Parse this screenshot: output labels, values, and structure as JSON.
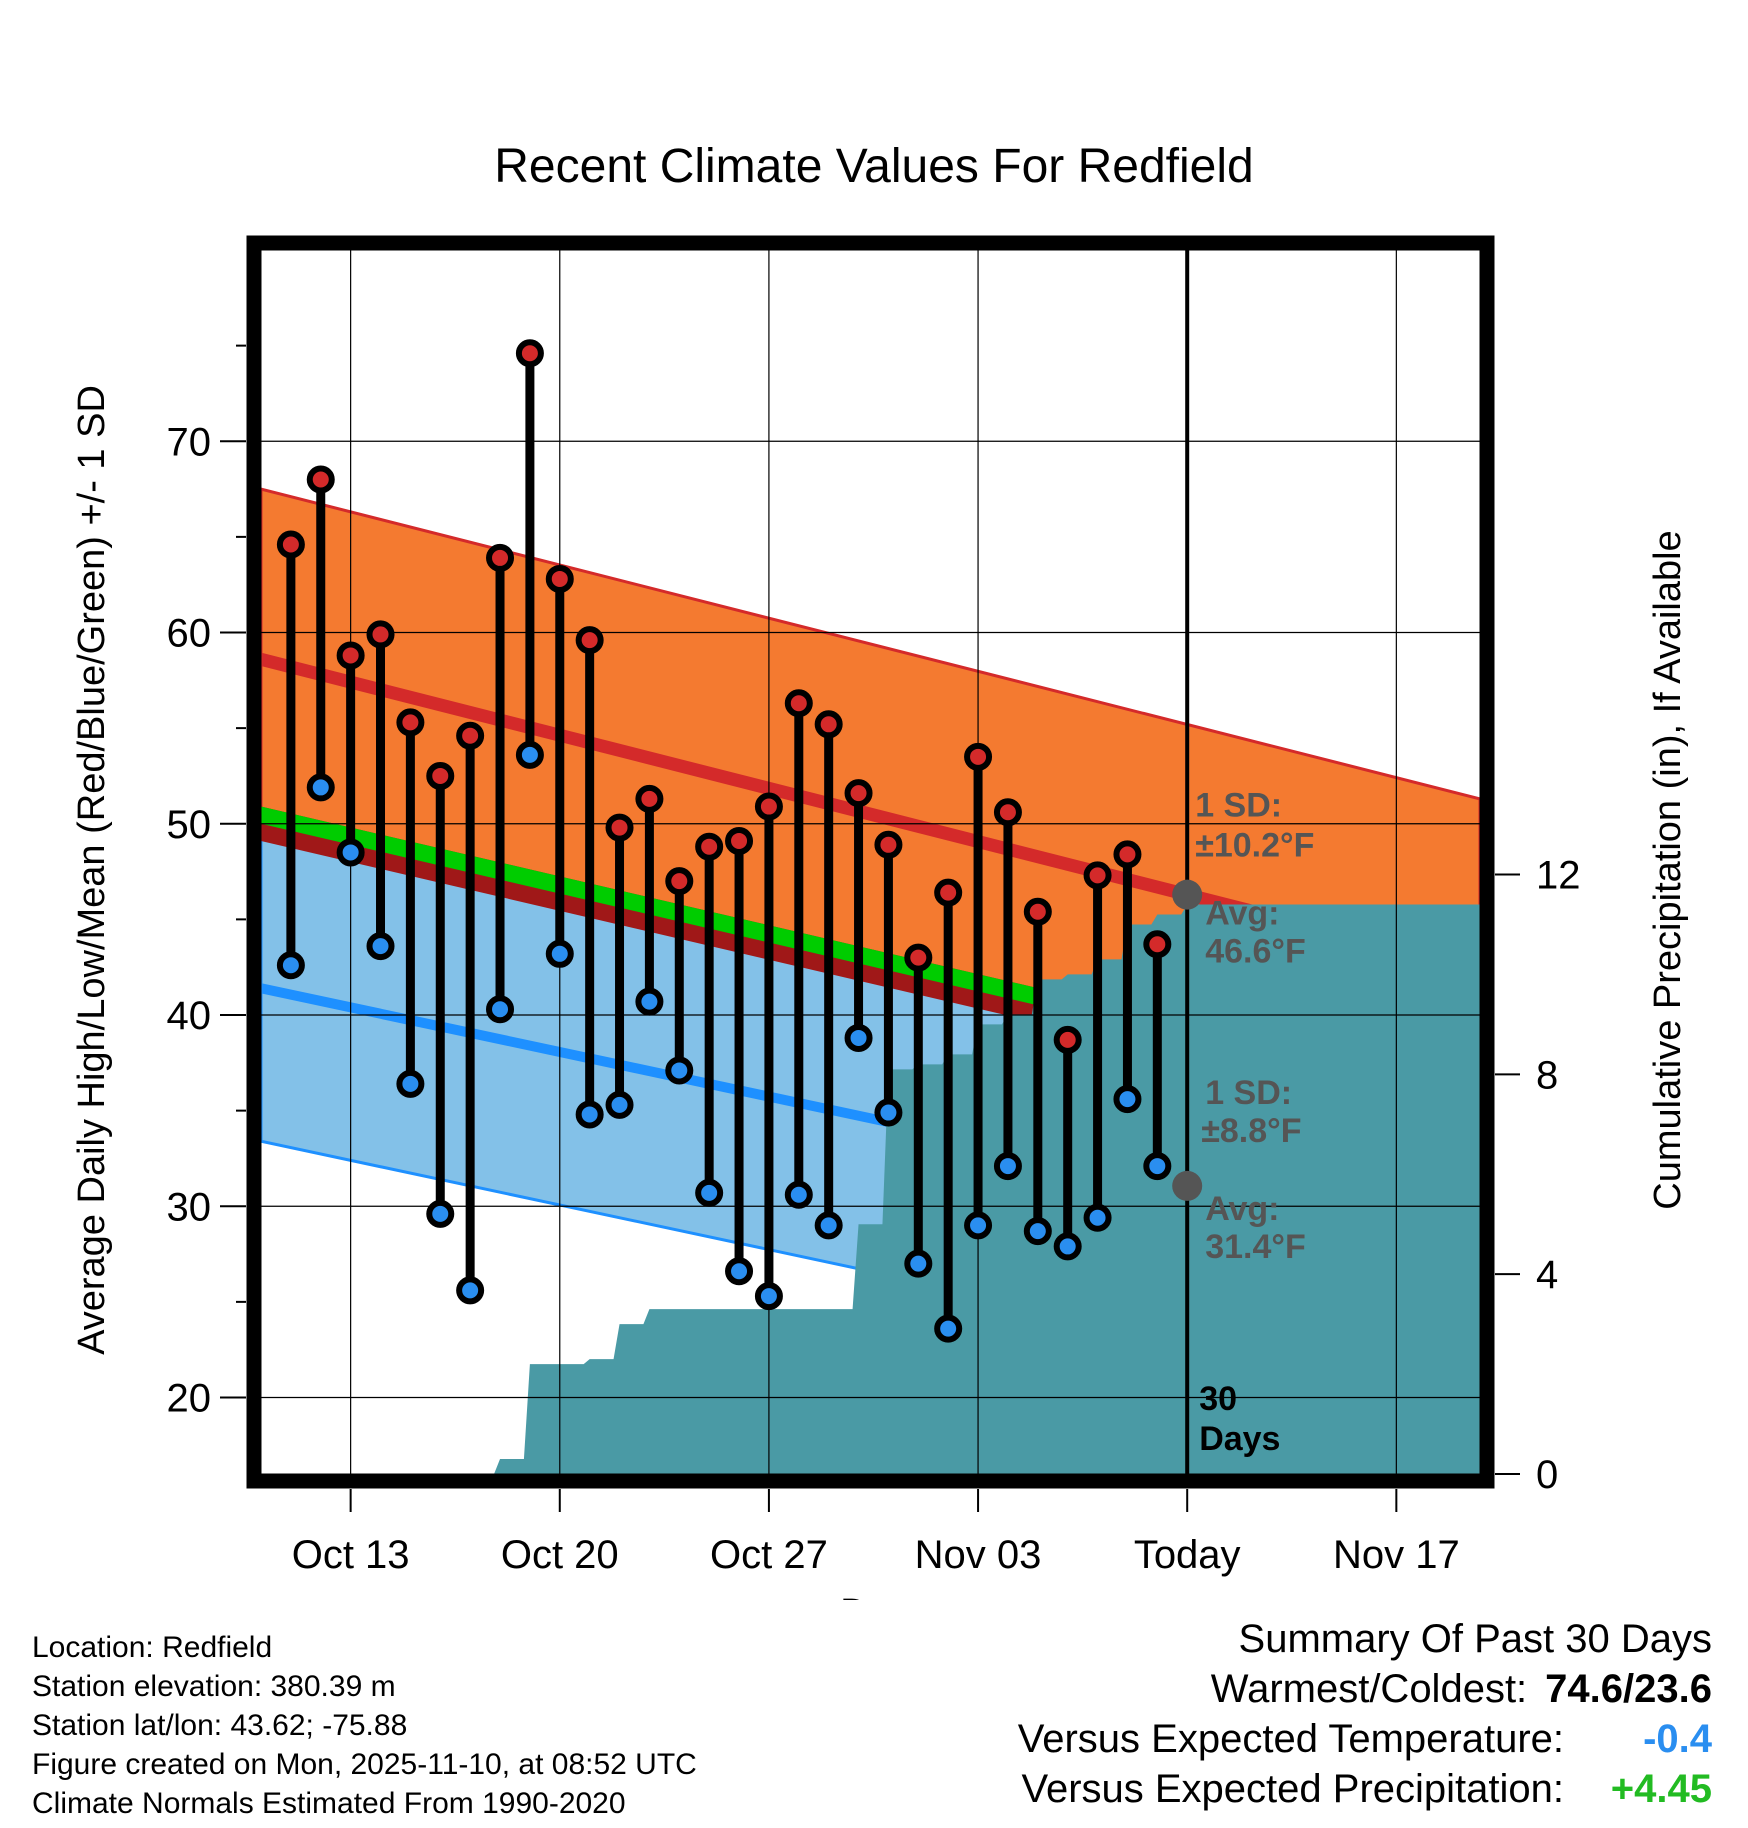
{
  "chart_data": {
    "type": "line",
    "title": "Recent Climate Values For Redfield",
    "xlabel": "Day",
    "ylabel": "Average Daily High/Low/Mean (Red/Blue/Green) +/- 1 SD",
    "y2label": "Cumulative Precipitation (in), If Available",
    "x_start": "Oct 10",
    "x_end": "Nov 19",
    "today_index": 31,
    "x_range": [
      0,
      40.8
    ],
    "ylim": [
      16,
      80
    ],
    "y2lim": [
      0,
      24.5
    ],
    "xticks": [
      {
        "index": 3,
        "label": "Oct 13"
      },
      {
        "index": 10,
        "label": "Oct 20"
      },
      {
        "index": 17,
        "label": "Oct 27"
      },
      {
        "index": 24,
        "label": "Nov 03"
      },
      {
        "index": 31,
        "label": "Today"
      },
      {
        "index": 38,
        "label": "Nov 17"
      }
    ],
    "yticks": [
      20,
      30,
      40,
      50,
      60,
      70
    ],
    "y2ticks": [
      0,
      4,
      8,
      12
    ],
    "normal_high": {
      "start": 58.6,
      "end": 42.4
    },
    "normal_low": {
      "start": 41.4,
      "end": 27.8
    },
    "normal_mean": {
      "start": 50.0,
      "end": 35.1
    },
    "high_sd": 8.9,
    "low_sd": 8.0,
    "daily_high": [
      64.6,
      68.0,
      58.8,
      59.9,
      55.3,
      52.5,
      54.6,
      63.9,
      74.6,
      62.8,
      59.6,
      49.8,
      51.3,
      47.0,
      48.8,
      49.1,
      50.9,
      56.3,
      55.2,
      51.6,
      48.9,
      43.0,
      46.4,
      53.5,
      50.6,
      45.4,
      38.7,
      47.3,
      48.4,
      43.7
    ],
    "daily_low": [
      42.6,
      51.9,
      48.5,
      43.6,
      36.4,
      29.6,
      25.6,
      40.3,
      53.6,
      43.2,
      34.8,
      35.3,
      40.7,
      37.1,
      30.7,
      26.6,
      25.3,
      30.6,
      29.0,
      38.8,
      34.9,
      27.0,
      23.6,
      29.0,
      32.1,
      28.7,
      27.9,
      29.4,
      35.6,
      32.1
    ],
    "cumulative_precip": [
      0,
      0,
      0,
      0,
      0,
      0,
      0,
      0,
      0.3,
      2.2,
      2.2,
      2.3,
      3.0,
      3.3,
      3.3,
      3.3,
      3.3,
      3.3,
      3.3,
      3.3,
      5.0,
      8.1,
      8.2,
      8.4,
      9.0,
      9.2,
      9.9,
      10.0,
      10.3,
      11.0,
      11.2,
      11.4
    ],
    "annotations": {
      "high_sd_label": "1 SD:",
      "high_sd_value": "±10.2°F",
      "high_avg_label": "Avg:",
      "high_avg_value": "46.6°F",
      "low_sd_label": "1 SD:",
      "low_sd_value": "±8.8°F",
      "low_avg_label": "Avg:",
      "low_avg_value": "31.4°F",
      "days_value": "30",
      "days_label": "Days"
    },
    "colors": {
      "high_band": "#f47a30",
      "high_line": "#d42a2a",
      "low_band": "#83c1e8",
      "low_line": "#1e90ff",
      "mean_band": "#00cc00",
      "mean_band_dark": "#a01818",
      "precip": "#4a9aa5",
      "high_dot": "#d42a2a",
      "low_dot": "#2a8ef0",
      "avg_dot": "#555555"
    }
  },
  "footer": {
    "location": "Location: Redfield",
    "elevation": "Station elevation: 380.39 m",
    "latlon": "Station lat/lon: 43.62; -75.88",
    "created": "Figure created on Mon, 2025-11-10, at 08:52 UTC",
    "normals": "Climate Normals Estimated From 1990-2020"
  },
  "summary": {
    "title": "Summary Of Past 30 Days",
    "warm_cold_label": "Warmest/Coldest:",
    "warm_cold_value": "74.6/23.6",
    "temp_label": "Versus Expected Temperature:",
    "temp_value": "-0.4",
    "precip_label": "Versus Expected Precipitation:",
    "precip_value": "+4.45",
    "temp_color": "#2a8ef0",
    "precip_color": "#22bb22"
  }
}
